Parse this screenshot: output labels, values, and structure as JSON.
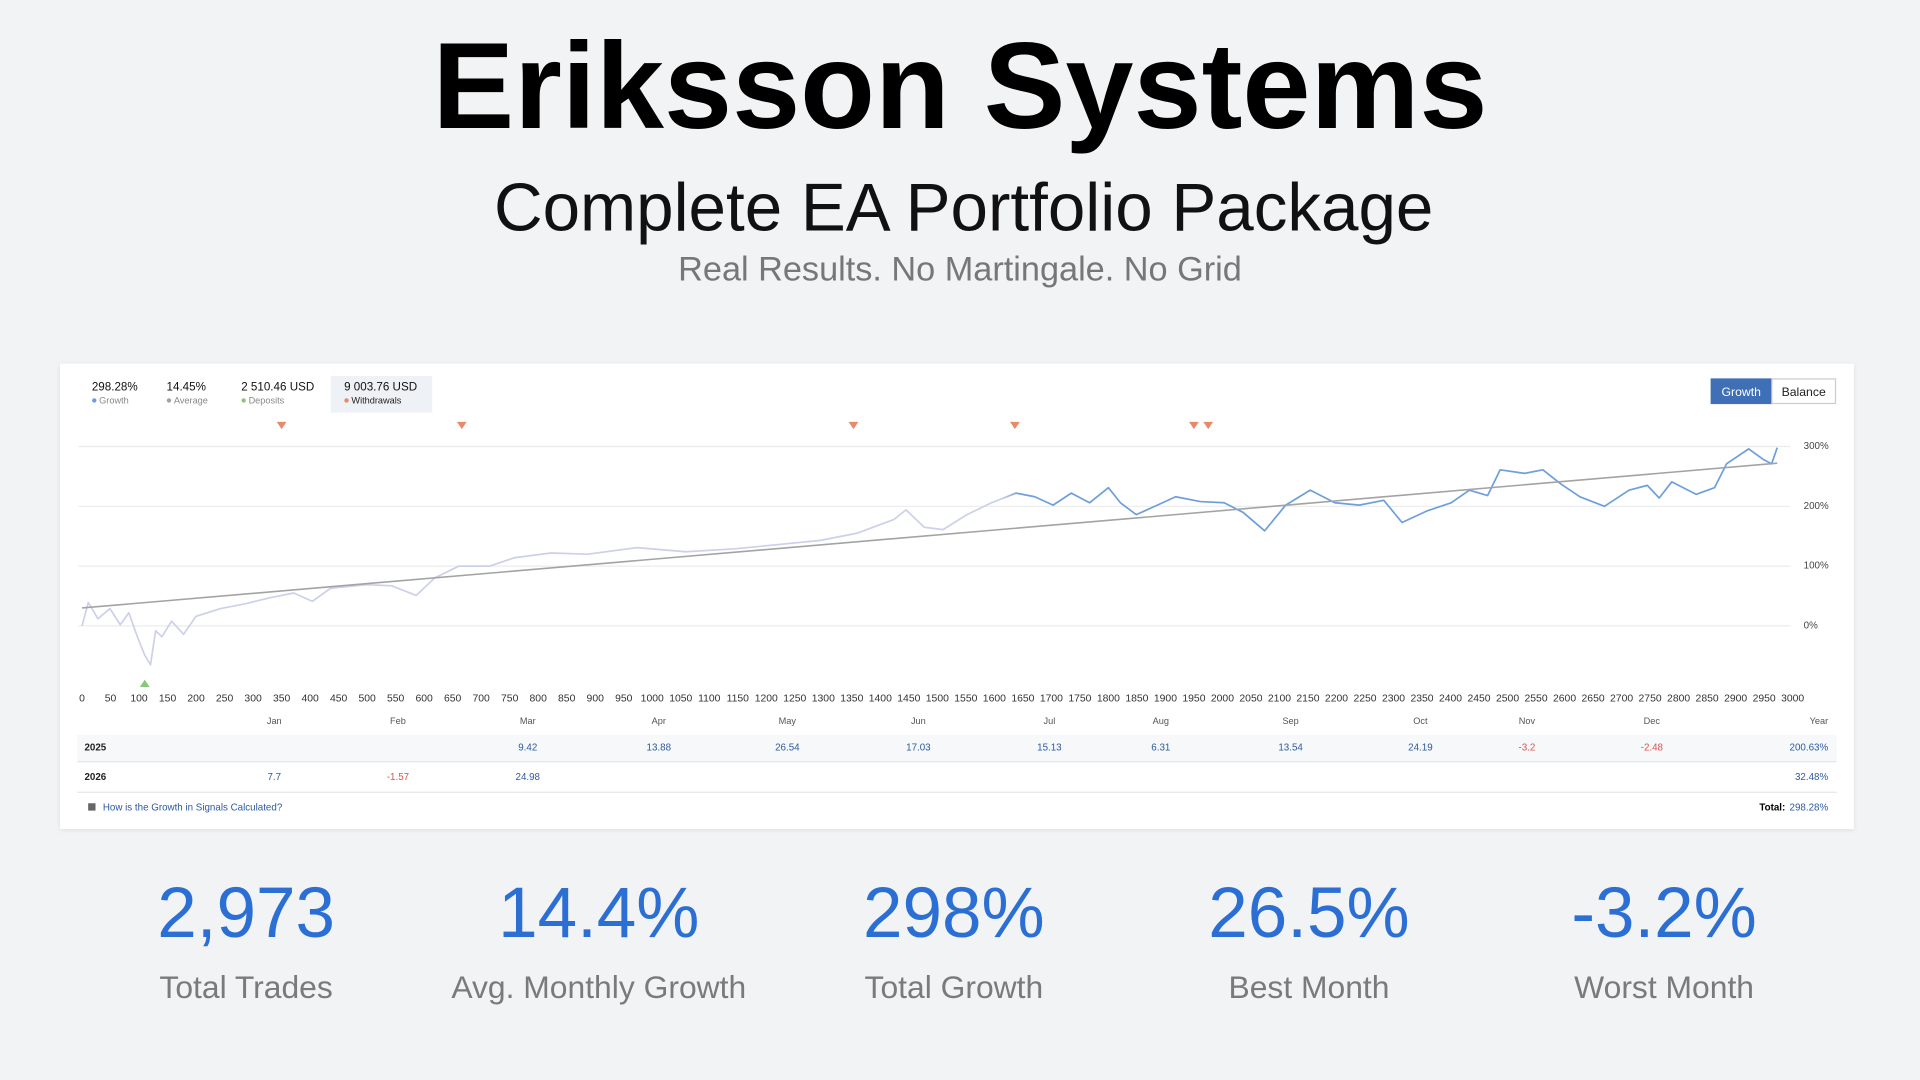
{
  "header": {
    "title": "Eriksson Systems",
    "subtitle": "Complete EA Portfolio Package",
    "tagline": "Real Results. No Martingale. No Grid"
  },
  "chart_data": {
    "type": "line",
    "xlim": [
      0,
      3000
    ],
    "xticks": [
      0,
      50,
      100,
      150,
      200,
      250,
      300,
      350,
      400,
      450,
      500,
      550,
      600,
      650,
      700,
      750,
      800,
      850,
      900,
      950,
      1000,
      1050,
      1100,
      1150,
      1200,
      1250,
      1300,
      1350,
      1400,
      1450,
      1500,
      1550,
      1600,
      1650,
      1700,
      1750,
      1800,
      1850,
      1900,
      1950,
      2000,
      2050,
      2100,
      2150,
      2200,
      2250,
      2300,
      2350,
      2400,
      2450,
      2500,
      2550,
      2600,
      2650,
      2700,
      2750,
      2800,
      2850,
      2900,
      2950,
      3000
    ],
    "ylim": [
      -100,
      330
    ],
    "yticks": [
      {
        "value": 0,
        "label": "0%"
      },
      {
        "value": 100,
        "label": "100%"
      },
      {
        "value": 200,
        "label": "200%"
      },
      {
        "value": 300,
        "label": "300%"
      }
    ],
    "grid": true,
    "series": [
      {
        "name": "Growth",
        "summary": "298.28%",
        "color": "#6e9fdb",
        "marker": "line",
        "x": [
          0,
          11,
          28,
          49,
          67,
          82,
          97,
          110,
          120,
          129,
          140,
          157,
          178,
          200,
          243,
          286,
          329,
          371,
          404,
          436,
          500,
          543,
          586,
          618,
          661,
          715,
          758,
          822,
          887,
          973,
          1059,
          1145,
          1230,
          1295,
          1359,
          1424,
          1445,
          1477,
          1510,
          1552,
          1595,
          1638,
          1671,
          1703,
          1735,
          1767,
          1800,
          1821,
          1849,
          1886,
          1918,
          1961,
          2003,
          2036,
          2074,
          2111,
          2154,
          2197,
          2240,
          2283,
          2315,
          2358,
          2401,
          2433,
          2465,
          2487,
          2530,
          2562,
          2594,
          2627,
          2670,
          2713,
          2745,
          2766,
          2788,
          2831,
          2863,
          2884,
          2923,
          2949,
          2963,
          2973
        ],
        "values": [
          0,
          39,
          12,
          29,
          2,
          22,
          -18,
          -49,
          -65,
          -8,
          -18,
          8,
          -14,
          16,
          29,
          37,
          47,
          55,
          41,
          63,
          69,
          67,
          51,
          80,
          100,
          100,
          114,
          122,
          120,
          131,
          124,
          129,
          137,
          143,
          155,
          178,
          194,
          165,
          161,
          186,
          206,
          222,
          216,
          202,
          222,
          206,
          231,
          206,
          186,
          202,
          216,
          208,
          206,
          190,
          159,
          202,
          227,
          206,
          202,
          210,
          173,
          192,
          206,
          227,
          218,
          261,
          255,
          261,
          237,
          216,
          200,
          227,
          235,
          214,
          241,
          220,
          231,
          271,
          296,
          278,
          271,
          298
        ]
      },
      {
        "name": "Average",
        "summary": "14.45%",
        "color": "#a3a3a3",
        "marker": "line",
        "x": [
          0,
          2973
        ],
        "values": [
          30,
          272
        ]
      },
      {
        "name": "Deposits",
        "summary": "2 510.46 USD",
        "color": "#8bc57a",
        "marker": "triangle-up",
        "x": [
          110
        ]
      },
      {
        "name": "Withdrawals",
        "summary": "9 003.76 USD",
        "color": "#e8896a",
        "marker": "triangle-down",
        "x": [
          350,
          666,
          1353,
          1636,
          1950,
          1975
        ]
      }
    ],
    "buttons": [
      "Growth",
      "Balance"
    ]
  },
  "monthly_table": {
    "columns": [
      "Jan",
      "Feb",
      "Mar",
      "Apr",
      "May",
      "Jun",
      "Jul",
      "Aug",
      "Sep",
      "Oct",
      "Nov",
      "Dec",
      "Year"
    ],
    "rows": [
      {
        "year": "2025",
        "cells": [
          null,
          null,
          "9.42",
          "13.88",
          "26.54",
          "17.03",
          "15.13",
          "6.31",
          "13.54",
          "24.19",
          "-3.2",
          "-2.48"
        ],
        "total": "200.63%"
      },
      {
        "year": "2026",
        "cells": [
          "7.7",
          "-1.57",
          "24.98",
          null,
          null,
          null,
          null,
          null,
          null,
          null,
          null,
          null
        ],
        "total": "32.48%"
      }
    ],
    "link": "How is the Growth in Signals Calculated?",
    "total_label": "Total:",
    "total_value": "298.28%"
  },
  "stats": [
    {
      "value": "2,973",
      "label": "Total Trades"
    },
    {
      "value": "14.4%",
      "label": "Avg. Monthly Growth"
    },
    {
      "value": "298%",
      "label": "Total Growth"
    },
    {
      "value": "26.5%",
      "label": "Best Month"
    },
    {
      "value": "-3.2%",
      "label": "Worst Month"
    }
  ]
}
